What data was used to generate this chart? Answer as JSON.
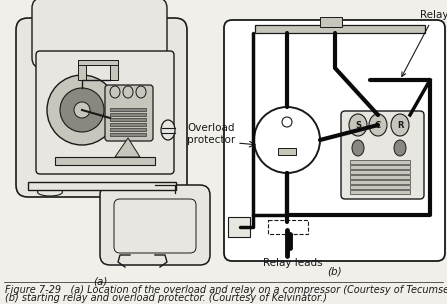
{
  "bg_color": "#f0efea",
  "title_text_1": "Figure 7-29   (a) Location of the overload and relay on a compressor (Courtesy of Tecumseh.),",
  "title_text_2": "(b) starting relay and overload protector. (Courtesy of Kelvinator.)",
  "label_a": "(a)",
  "label_b": "(b)",
  "label_relay": "Relay",
  "label_overload_1": "Overload",
  "label_overload_2": "protector",
  "label_relay_leads": "Relay leads",
  "label_s": "S",
  "label_c": "C",
  "label_r": "R",
  "line_color": "#1a1a1a",
  "fill_light": "#e8e6e0",
  "fill_mid": "#c8c5bc",
  "fill_dark": "#888880",
  "wire_color": "#0a0a0a",
  "white": "#ffffff",
  "font_size_caption": 7.0,
  "font_size_label": 7.5,
  "font_size_scr": 6.0
}
